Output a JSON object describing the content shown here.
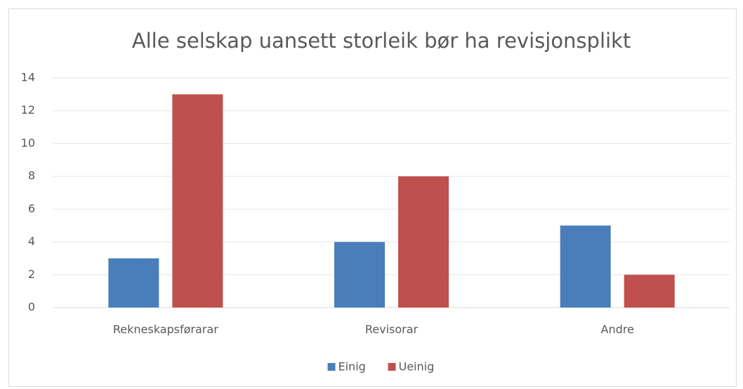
{
  "chart_data": {
    "type": "bar",
    "title": "Alle selskap uansett storleik bør ha revisjonsplikt",
    "categories": [
      "Rekneskapsførarar",
      "Revisorar",
      "Andre"
    ],
    "series": [
      {
        "name": "Einig",
        "color": "#4a7ebb",
        "values": [
          3,
          4,
          5
        ]
      },
      {
        "name": "Ueinig",
        "color": "#c0504d",
        "values": [
          13,
          8,
          2
        ]
      }
    ],
    "ylim": [
      0,
      14
    ],
    "yticks": [
      0,
      2,
      4,
      6,
      8,
      10,
      12,
      14
    ],
    "grid": true,
    "legend": "bottom"
  }
}
